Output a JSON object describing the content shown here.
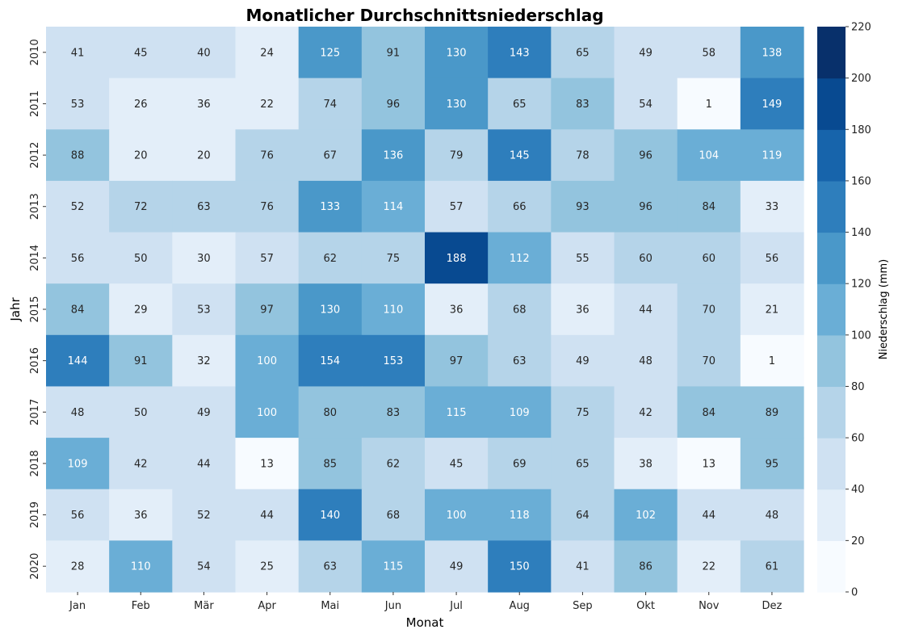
{
  "chart_data": {
    "type": "heatmap",
    "title": "Monatlicher Durchschnittsniederschlag",
    "xlabel": "Monat",
    "ylabel": "Jahr",
    "x_categories": [
      "Jan",
      "Feb",
      "Mär",
      "Apr",
      "Mai",
      "Jun",
      "Jul",
      "Aug",
      "Sep",
      "Okt",
      "Nov",
      "Dez"
    ],
    "y_categories": [
      "2010",
      "2011",
      "2012",
      "2013",
      "2014",
      "2015",
      "2016",
      "2017",
      "2018",
      "2019",
      "2020"
    ],
    "values": [
      [
        41,
        45,
        40,
        24,
        125,
        91,
        130,
        143,
        65,
        49,
        58,
        138
      ],
      [
        53,
        26,
        36,
        22,
        74,
        96,
        130,
        65,
        83,
        54,
        1,
        149
      ],
      [
        88,
        20,
        20,
        76,
        67,
        136,
        79,
        145,
        78,
        96,
        104,
        119
      ],
      [
        52,
        72,
        63,
        76,
        133,
        114,
        57,
        66,
        93,
        96,
        84,
        33
      ],
      [
        56,
        50,
        30,
        57,
        62,
        75,
        188,
        112,
        55,
        60,
        60,
        56
      ],
      [
        84,
        29,
        53,
        97,
        130,
        110,
        36,
        68,
        36,
        44,
        70,
        21
      ],
      [
        144,
        91,
        32,
        100,
        154,
        153,
        97,
        63,
        49,
        48,
        70,
        1
      ],
      [
        48,
        50,
        49,
        100,
        80,
        83,
        115,
        109,
        75,
        42,
        84,
        89
      ],
      [
        109,
        42,
        44,
        13,
        85,
        62,
        45,
        69,
        65,
        38,
        13,
        95
      ],
      [
        56,
        36,
        52,
        44,
        140,
        68,
        100,
        118,
        64,
        102,
        44,
        48
      ],
      [
        28,
        110,
        54,
        25,
        63,
        115,
        49,
        150,
        41,
        86,
        22,
        61
      ]
    ],
    "colorbar": {
      "label": "Niederschlag (mm)",
      "range": [
        0,
        220
      ],
      "bin_size": 20,
      "ticks": [
        "0",
        "20",
        "40",
        "60",
        "80",
        "100",
        "120",
        "140",
        "160",
        "180",
        "200",
        "220"
      ]
    },
    "colormap": [
      "#f7fbff",
      "#e3eef9",
      "#cfe1f2",
      "#b5d4e9",
      "#93c4de",
      "#6aaed6",
      "#4a98c9",
      "#2e7ebc",
      "#1764ab",
      "#084a91",
      "#08306b"
    ],
    "annotation_colors": {
      "dark": "#262626",
      "light": "#ffffff"
    },
    "annotation_light_threshold": 100
  }
}
